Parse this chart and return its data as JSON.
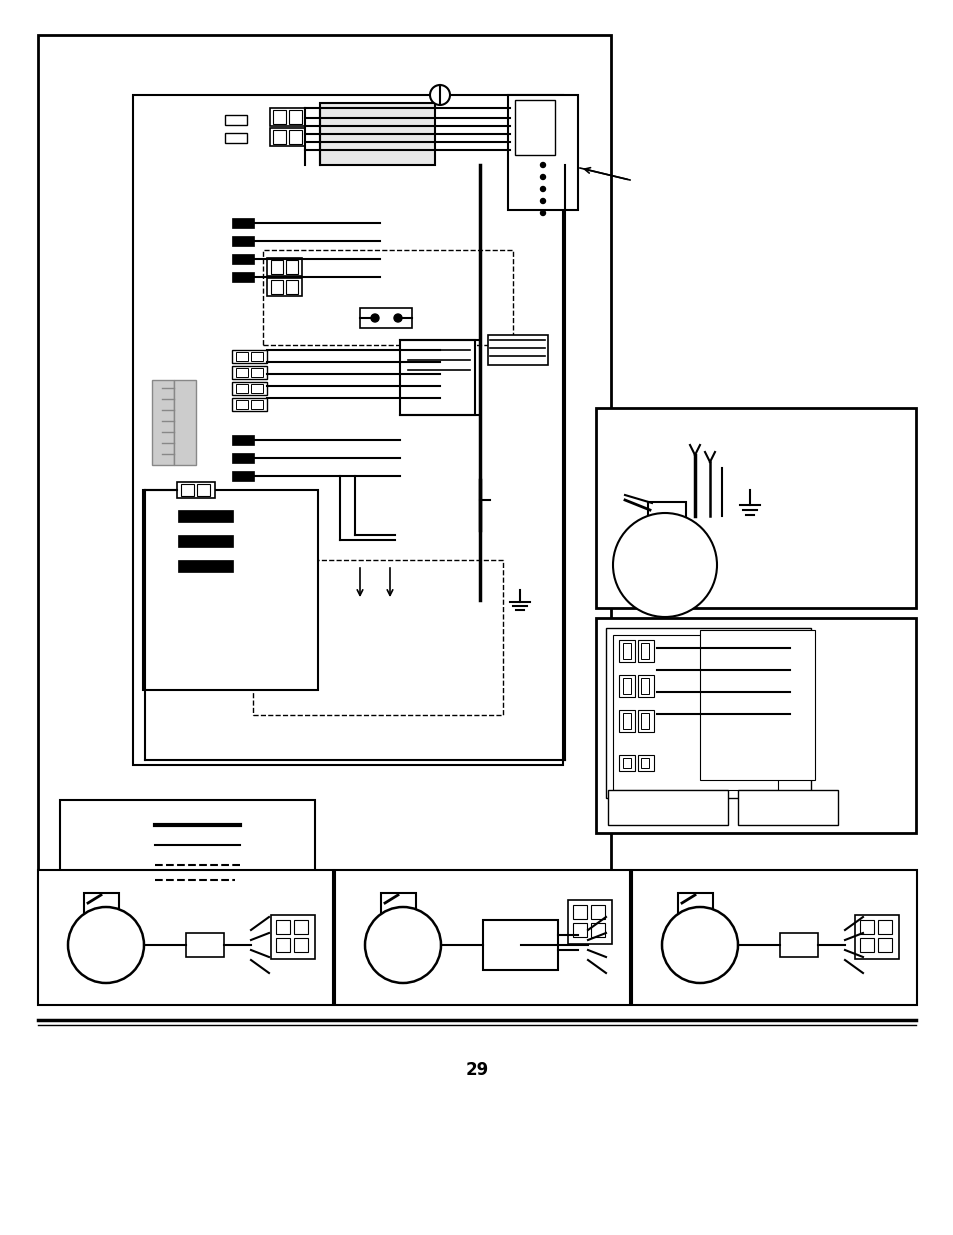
{
  "page_number": "29",
  "bg_color": "#ffffff",
  "line_color": "#000000",
  "fig_width": 9.54,
  "fig_height": 12.35
}
